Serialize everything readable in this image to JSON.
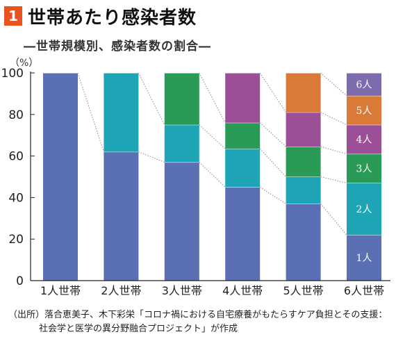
{
  "header": {
    "number": "1",
    "title": "世帯あたり感染者数",
    "subtitle": "―世帯規模別、感染者数の割合―",
    "unit": "（%）"
  },
  "colors": {
    "badge": "#e8531f",
    "1人": "#5b6fb5",
    "2人": "#1ea5b5",
    "3人": "#2a9a57",
    "4人": "#9b4f96",
    "5人": "#d97a39",
    "6人": "#7c6cae"
  },
  "chart_data": {
    "type": "bar",
    "stacked": true,
    "categories": [
      "1人世帯",
      "2人世帯",
      "3人世帯",
      "4人世帯",
      "5人世帯",
      "6人世帯"
    ],
    "ylim": [
      0,
      100
    ],
    "yticks": [
      0,
      20,
      40,
      60,
      80,
      100
    ],
    "grid": false,
    "connector_lines": "dotted",
    "series": [
      {
        "name": "1人",
        "values": [
          100,
          62,
          57,
          45,
          37,
          22
        ]
      },
      {
        "name": "2人",
        "values": [
          0,
          38,
          18,
          18.5,
          13,
          25
        ]
      },
      {
        "name": "3人",
        "values": [
          0,
          0,
          25,
          12.5,
          14.5,
          14
        ]
      },
      {
        "name": "4人",
        "values": [
          0,
          0,
          0,
          24,
          16.5,
          14
        ]
      },
      {
        "name": "5人",
        "values": [
          0,
          0,
          0,
          0,
          19,
          14
        ]
      },
      {
        "name": "6人",
        "values": [
          0,
          0,
          0,
          0,
          0,
          11
        ]
      }
    ],
    "segment_labels_on_category": "6人世帯"
  },
  "source": {
    "line1": "（出所）落合恵美子、木下彩栄「コロナ禍における自宅療養がもたらすケア負担とその支援：",
    "line2": "社会学と医学の異分野融合プロジェクト」が作成"
  }
}
